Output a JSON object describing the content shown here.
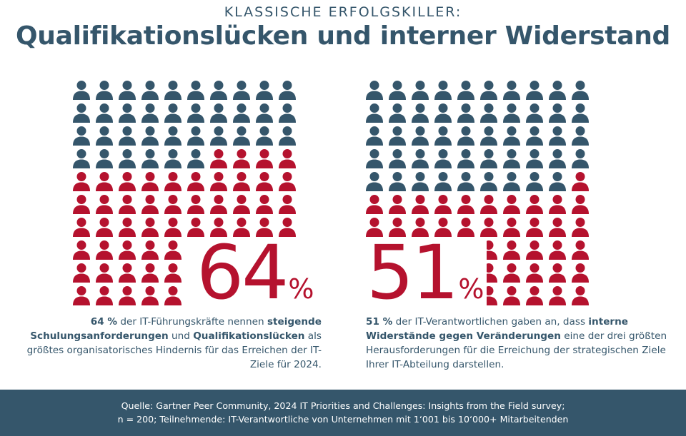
{
  "header": {
    "kicker": "KLASSISCHE ERFOLGSKILLER:",
    "title": "Qualifikationslücken und interner Widerstand"
  },
  "colors": {
    "dark": "#35566b",
    "accent": "#b5122e",
    "background": "#ffffff"
  },
  "icon": "person-icon",
  "stats": [
    {
      "value": "64",
      "unit": "%",
      "highlighted_count": 64,
      "total": 100,
      "description": {
        "p1": "64 %",
        "p2": " der IT-Führungskräfte nennen ",
        "p3": "steigende Schulungsanforderungen",
        "p4": " und ",
        "p5": "Qualifikationslücken",
        "p6": " als größtes organisatorisches Hindernis für das Erreichen der IT-Ziele für 2024."
      }
    },
    {
      "value": "51",
      "unit": "%",
      "highlighted_count": 51,
      "total": 100,
      "description": {
        "p1": "51 %",
        "p2": " der IT-Verantwortlichen gaben an, dass ",
        "p3": "interne Widerstände gegen Veränderungen",
        "p4": " eine der drei größten Herausforderungen für die Erreichung der strategischen Ziele Ihrer IT-Abteilung darstellen."
      }
    }
  ],
  "footer": {
    "line1": "Quelle: Gartner Peer Community, 2024 IT Priorities and Challenges: Insights from the Field survey;",
    "line2": "n = 200; Teilnehmende: IT-Verantwortliche von Unternehmen mit 1‘001 bis 10‘000+ Mitarbeitenden"
  }
}
